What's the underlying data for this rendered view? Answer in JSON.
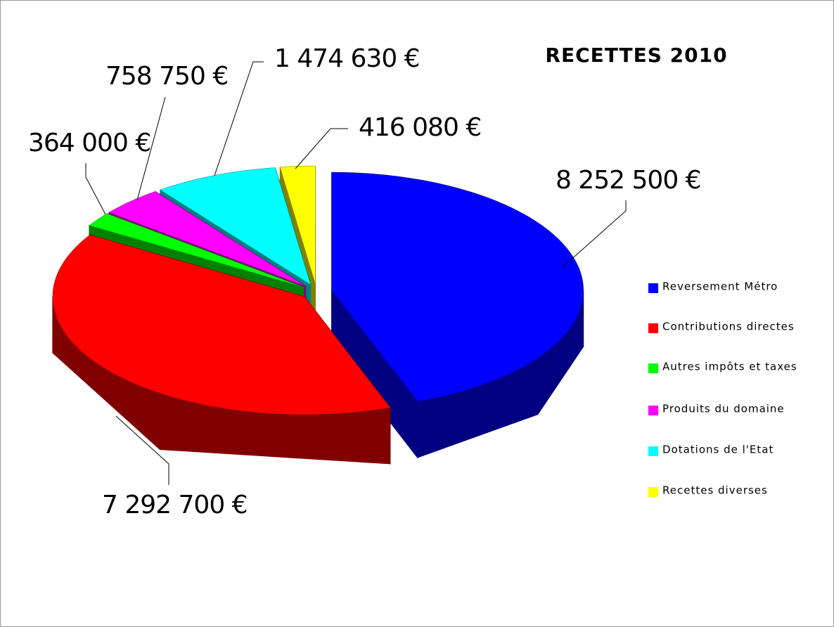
{
  "chart_data": {
    "type": "pie3d",
    "title": "RECETTES 2010",
    "categories": [
      "Reversement Métro",
      "Contributions directes",
      "Autres impôts et taxes",
      "Produits du domaine",
      "Dotations de l'Etat",
      "Recettes diverses"
    ],
    "values": [
      8252500,
      7292700,
      364000,
      758750,
      1474630,
      416080
    ],
    "value_labels": [
      "8 252 500 €",
      "7 292 700 €",
      "364 000 €",
      "758 750 €",
      "1 474 630 €",
      "416 080 €"
    ],
    "colors": [
      "#0000ff",
      "#ff0000",
      "#00ff00",
      "#ff00ff",
      "#00ffff",
      "#ffff00"
    ],
    "legend": "right"
  }
}
